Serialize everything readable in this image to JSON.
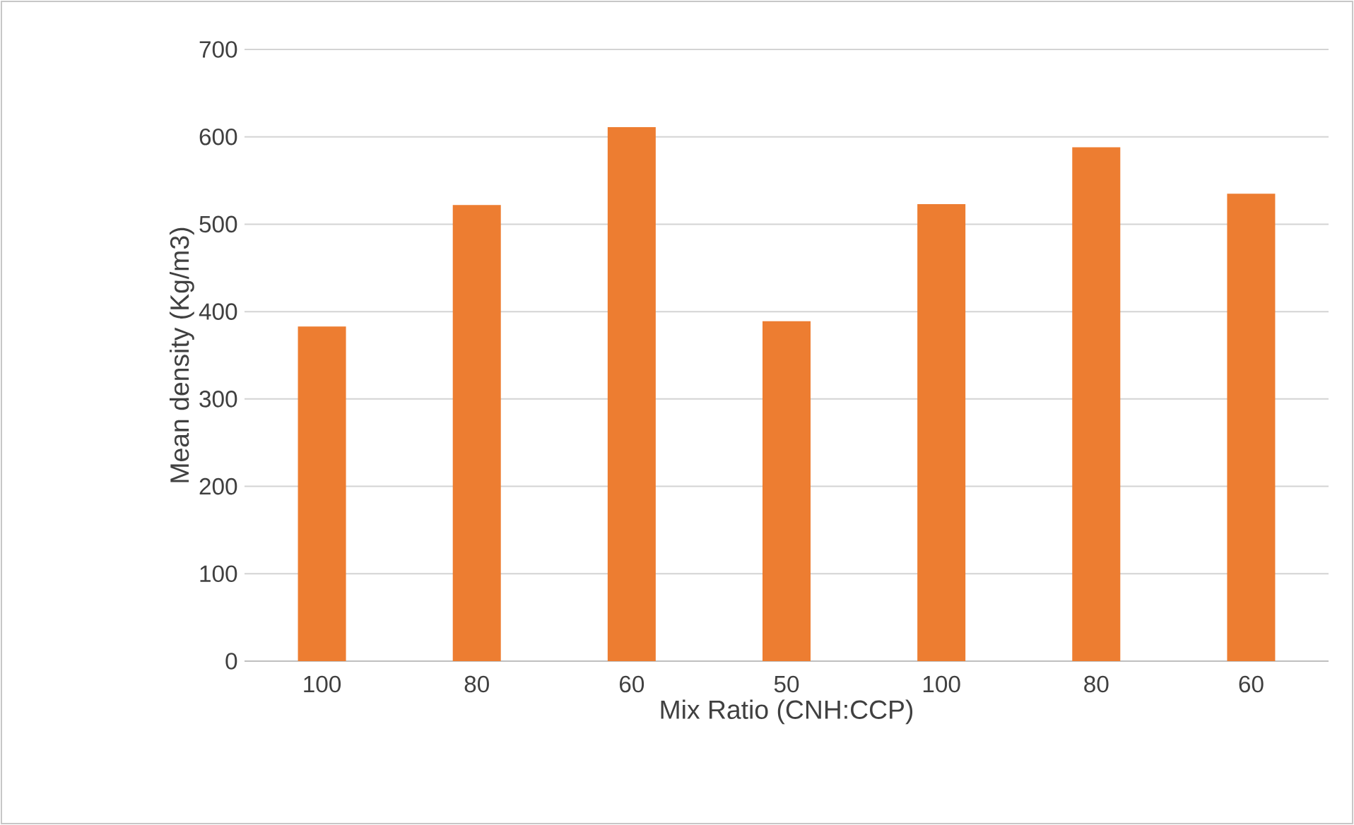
{
  "chart_data": {
    "type": "bar",
    "xlabel": "Mix Ratio (CNH:CCP)",
    "ylabel": "Mean density (Kg/m3)",
    "categories": [
      "100",
      "80",
      "60",
      "50",
      "100",
      "80",
      "60"
    ],
    "values": [
      383,
      522,
      611,
      389,
      523,
      588,
      535
    ],
    "color": "#ed7d31",
    "ylim": [
      0,
      700
    ],
    "yticks": [
      0,
      100,
      200,
      300,
      400,
      500,
      600,
      700
    ],
    "grid": "y"
  }
}
